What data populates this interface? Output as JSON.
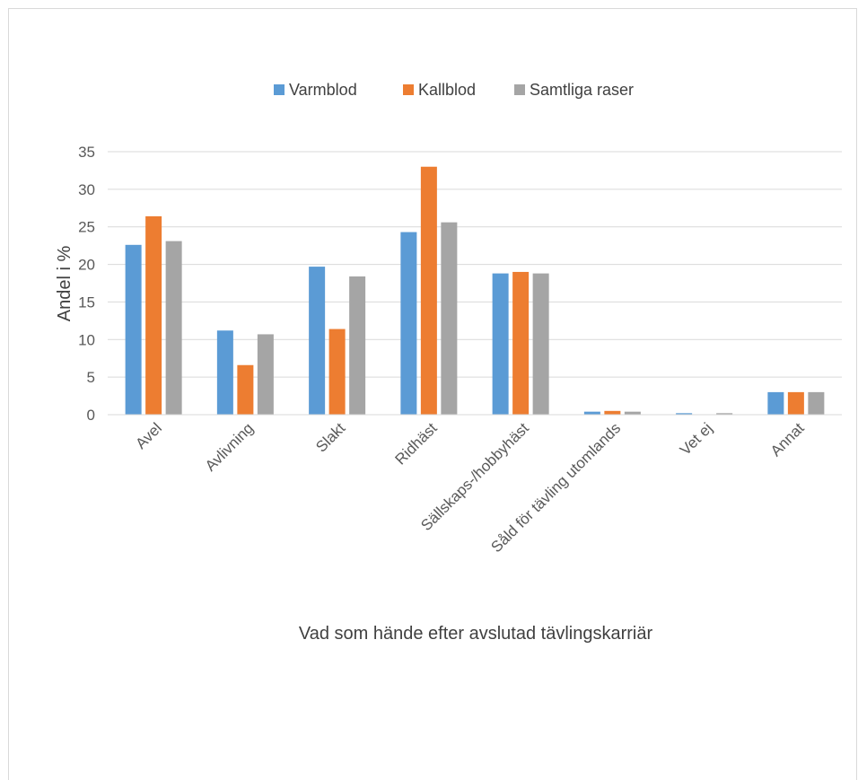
{
  "chart_data": {
    "type": "bar",
    "title": "",
    "xlabel": "Vad som hände efter avslutad tävlingskarriär",
    "ylabel": "Andel i %",
    "ylim": [
      0,
      35
    ],
    "yticks": [
      0,
      5,
      10,
      15,
      20,
      25,
      30,
      35
    ],
    "grid": true,
    "legend_position": "top-center",
    "categories": [
      "Avel",
      "Avlivning",
      "Slakt",
      "Ridhäst",
      "Sällskaps-/hobbyhäst",
      "Såld för tävling utomlands",
      "Vet ej",
      "Annat"
    ],
    "series": [
      {
        "name": "Varmblod",
        "color": "#5b9bd5",
        "values": [
          22.6,
          11.2,
          19.7,
          24.3,
          18.8,
          0.4,
          0.2,
          3.0
        ]
      },
      {
        "name": "Kallblod",
        "color": "#ed7d31",
        "values": [
          26.4,
          6.6,
          11.4,
          33.0,
          19.0,
          0.5,
          0.0,
          3.0
        ]
      },
      {
        "name": "Samtliga raser",
        "color": "#a5a5a5",
        "values": [
          23.1,
          10.7,
          18.4,
          25.6,
          18.8,
          0.4,
          0.2,
          3.0
        ]
      }
    ]
  }
}
